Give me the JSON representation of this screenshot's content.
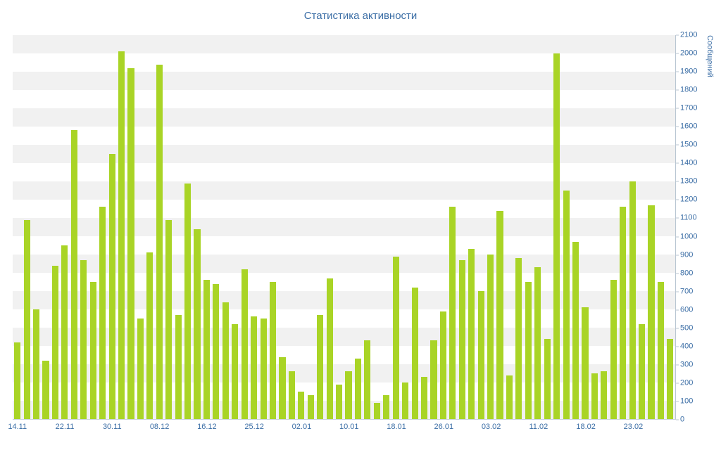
{
  "chart_data": {
    "type": "bar",
    "title": "Статистика активности",
    "xlabel": "",
    "ylabel": "Сообщений",
    "ylim": [
      0,
      2100
    ],
    "y_tick_step": 100,
    "grid": "striped-horizontal-bands",
    "legend": "none",
    "y_axis_position": "right",
    "bar_color": "#a9d426",
    "stripe_color": "#f1f1f1",
    "axis_color": "#b9c6d2",
    "label_color": "#3a6da5",
    "values": [
      420,
      1090,
      600,
      320,
      840,
      950,
      1580,
      870,
      750,
      1160,
      1450,
      2010,
      1920,
      550,
      910,
      1940,
      1090,
      570,
      1290,
      1040,
      760,
      740,
      640,
      520,
      820,
      560,
      550,
      750,
      340,
      260,
      150,
      130,
      570,
      770,
      190,
      260,
      330,
      430,
      90,
      130,
      890,
      200,
      720,
      230,
      430,
      590,
      1160,
      870,
      930,
      700,
      900,
      1140,
      240,
      880,
      750,
      830,
      440,
      2000,
      1250,
      970,
      610,
      250,
      260,
      760,
      1160,
      1300,
      520,
      1170,
      750,
      440
    ],
    "x_tick_labels": [
      {
        "label": "14.11",
        "bar_index": 0
      },
      {
        "label": "22.11",
        "bar_index": 5
      },
      {
        "label": "30.11",
        "bar_index": 10
      },
      {
        "label": "08.12",
        "bar_index": 15
      },
      {
        "label": "16.12",
        "bar_index": 20
      },
      {
        "label": "25.12",
        "bar_index": 25
      },
      {
        "label": "02.01",
        "bar_index": 30
      },
      {
        "label": "10.01",
        "bar_index": 35
      },
      {
        "label": "18.01",
        "bar_index": 40
      },
      {
        "label": "26.01",
        "bar_index": 45
      },
      {
        "label": "03.02",
        "bar_index": 50
      },
      {
        "label": "11.02",
        "bar_index": 55
      },
      {
        "label": "18.02",
        "bar_index": 60
      },
      {
        "label": "23.02",
        "bar_index": 65
      }
    ]
  }
}
